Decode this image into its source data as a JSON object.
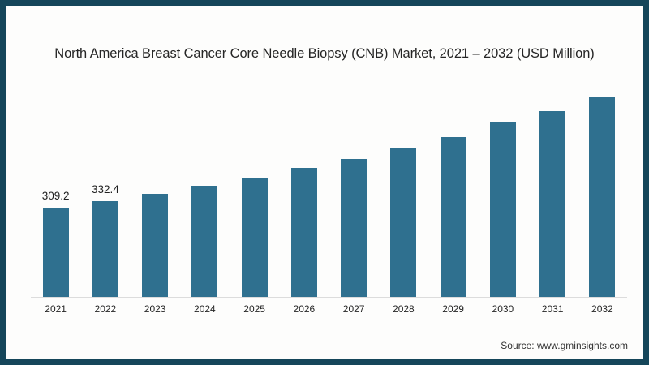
{
  "header": {
    "title": "North America Breast Cancer Core Needle Biopsy (CNB) Market, 2021 – 2032 (USD Million)"
  },
  "footer": {
    "source_label": "Source: www.gminsights.com"
  },
  "colors": {
    "frame": "#15465a",
    "bar": "#2f708f",
    "axis_line": "#dcdcdc",
    "background": "#fdfdfc"
  },
  "chart_data": {
    "type": "bar",
    "title": "North America Breast Cancer Core Needle Biopsy (CNB) Market, 2021 – 2032 (USD Million)",
    "categories": [
      "2021",
      "2022",
      "2023",
      "2024",
      "2025",
      "2026",
      "2027",
      "2028",
      "2029",
      "2030",
      "2031",
      "2032"
    ],
    "values": [
      309.2,
      332.4,
      358,
      386,
      412,
      447,
      478,
      514,
      555,
      606,
      644,
      695
    ],
    "data_labels": [
      "309.2",
      "332.4",
      "",
      "",
      "",
      "",
      "",
      "",
      "",
      "",
      "",
      ""
    ],
    "xlabel": "",
    "ylabel": "",
    "ylim": [
      0,
      700
    ],
    "grid": false,
    "legend": false,
    "bar_color": "#2f708f"
  }
}
